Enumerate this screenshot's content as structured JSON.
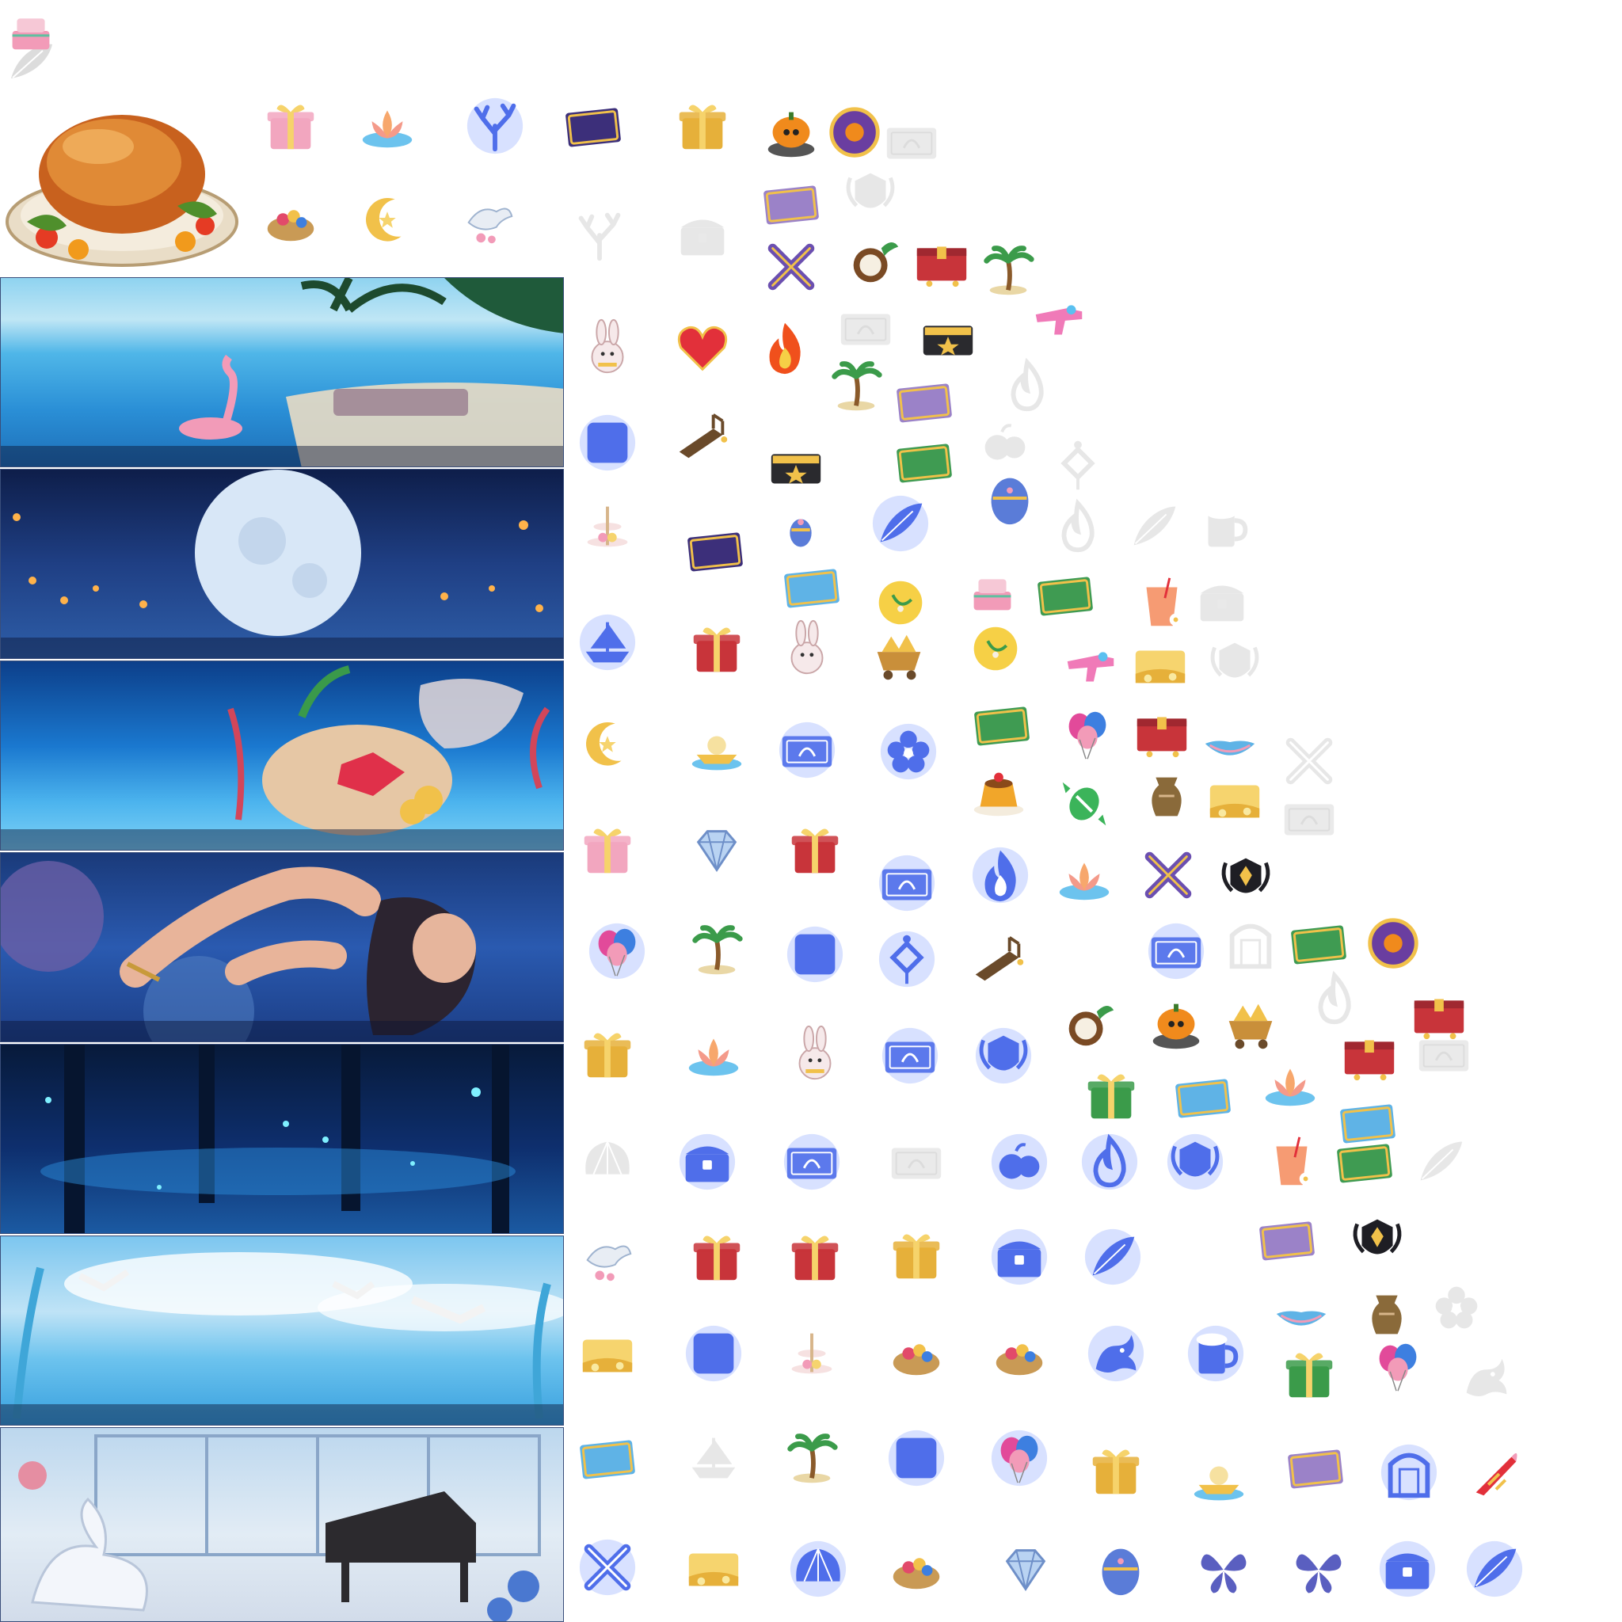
{
  "sheet": {
    "description_colors": {
      "background": "#ffffff",
      "blue_glow": "#5a7cff",
      "gold": "#f1c14a",
      "red": "#c8343a",
      "ghost_gray": "#cfd2d8"
    }
  },
  "banners": [
    {
      "scene": "tropical-beach",
      "icon": "palm-tree-icon"
    },
    {
      "scene": "full-moon-night",
      "icon": "moon-icon"
    },
    {
      "scene": "underwater-treasure",
      "icon": "gem-icon"
    },
    {
      "scene": "mermaid-character",
      "icon": "character-icon"
    },
    {
      "scene": "firefly-forest",
      "icon": "butterfly-icon"
    },
    {
      "scene": "seagull-sky",
      "icon": "bird-icon"
    },
    {
      "scene": "swan-piano-room",
      "icon": "piano-icon"
    }
  ],
  "icons": [
    {
      "kind": "gift"
    },
    {
      "kind": "lotus"
    },
    {
      "kind": "coral-blue"
    },
    {
      "kind": "card-purple"
    },
    {
      "kind": "gift-gold"
    },
    {
      "kind": "pumpkin"
    },
    {
      "kind": "coin-purple"
    },
    {
      "kind": "ticket-ghost"
    },
    {
      "kind": "basket"
    },
    {
      "kind": "moon"
    },
    {
      "kind": "dove"
    },
    {
      "kind": "coral-ghost"
    },
    {
      "kind": "chest-ghost"
    },
    {
      "kind": "card-flower"
    },
    {
      "kind": "crest-ghost"
    },
    {
      "kind": "swords"
    },
    {
      "kind": "coconut"
    },
    {
      "kind": "red-chest"
    },
    {
      "kind": "palm"
    },
    {
      "kind": "bunny"
    },
    {
      "kind": "heart"
    },
    {
      "kind": "flame"
    },
    {
      "kind": "ticket-ghost"
    },
    {
      "kind": "gold-ticket"
    },
    {
      "kind": "water-gun"
    },
    {
      "kind": "palm"
    },
    {
      "kind": "card-flower"
    },
    {
      "kind": "fire-ghost"
    },
    {
      "kind": "card-blue"
    },
    {
      "kind": "bridge"
    },
    {
      "kind": "gold-ticket"
    },
    {
      "kind": "card-green"
    },
    {
      "kind": "fruit-ghost"
    },
    {
      "kind": "knot-ghost"
    },
    {
      "kind": "egg-small"
    },
    {
      "kind": "egg"
    },
    {
      "kind": "cake-stand"
    },
    {
      "kind": "card-purple"
    },
    {
      "kind": "feather-blue"
    },
    {
      "kind": "fire-ghost"
    },
    {
      "kind": "feather-ghost"
    },
    {
      "kind": "beer-ghost"
    },
    {
      "kind": "card-ship"
    },
    {
      "kind": "gold-orb"
    },
    {
      "kind": "cake"
    },
    {
      "kind": "card-green"
    },
    {
      "kind": "drink"
    },
    {
      "kind": "chest-ghost"
    },
    {
      "kind": "ship-blue"
    },
    {
      "kind": "gift-red"
    },
    {
      "kind": "bunny-big"
    },
    {
      "kind": "cart-gold"
    },
    {
      "kind": "gold-orb"
    },
    {
      "kind": "water-gun"
    },
    {
      "kind": "gold-card"
    },
    {
      "kind": "crest-ghost"
    },
    {
      "kind": "card-green"
    },
    {
      "kind": "balloons"
    },
    {
      "kind": "red-chest"
    },
    {
      "kind": "boat"
    },
    {
      "kind": "moon"
    },
    {
      "kind": "boat-gold"
    },
    {
      "kind": "ticket-blue"
    },
    {
      "kind": "flower-blue"
    },
    {
      "kind": "pudding"
    },
    {
      "kind": "candy"
    },
    {
      "kind": "vase"
    },
    {
      "kind": "gold-card"
    },
    {
      "kind": "swords-ghost"
    },
    {
      "kind": "ticket-ghost"
    },
    {
      "kind": "gift"
    },
    {
      "kind": "diamond"
    },
    {
      "kind": "gift-red"
    },
    {
      "kind": "ticket-blue"
    },
    {
      "kind": "flame-blue"
    },
    {
      "kind": "lotus"
    },
    {
      "kind": "swords"
    },
    {
      "kind": "crest-dark"
    },
    {
      "kind": "balloons-blue"
    },
    {
      "kind": "palm"
    },
    {
      "kind": "card-blue"
    },
    {
      "kind": "knot-blue"
    },
    {
      "kind": "bridge"
    },
    {
      "kind": "ticket-blue"
    },
    {
      "kind": "gate-ghost"
    },
    {
      "kind": "card-green"
    },
    {
      "kind": "coin-purple"
    },
    {
      "kind": "fire-ghost"
    },
    {
      "kind": "red-chest"
    },
    {
      "kind": "gift-gold"
    },
    {
      "kind": "lotus"
    },
    {
      "kind": "bunny"
    },
    {
      "kind": "ticket-blue"
    },
    {
      "kind": "crest-blue"
    },
    {
      "kind": "coconut"
    },
    {
      "kind": "pumpkin"
    },
    {
      "kind": "cart-gold"
    },
    {
      "kind": "red-chest"
    },
    {
      "kind": "ticket-ghost"
    },
    {
      "kind": "gift-green"
    },
    {
      "kind": "card-ship"
    },
    {
      "kind": "lotus"
    },
    {
      "kind": "card-ship"
    },
    {
      "kind": "shell-ghost"
    },
    {
      "kind": "chest-blue"
    },
    {
      "kind": "ticket-blue"
    },
    {
      "kind": "ticket-ghost"
    },
    {
      "kind": "fruit-blue"
    },
    {
      "kind": "fire-blue"
    },
    {
      "kind": "crest-blue"
    },
    {
      "kind": "drink"
    },
    {
      "kind": "card-green"
    },
    {
      "kind": "feather-ghost"
    },
    {
      "kind": "dove"
    },
    {
      "kind": "gift-red"
    },
    {
      "kind": "gift-red"
    },
    {
      "kind": "gift-gold"
    },
    {
      "kind": "chest-blue"
    },
    {
      "kind": "feather-blue"
    },
    {
      "kind": "card-flower"
    },
    {
      "kind": "crest-dark"
    },
    {
      "kind": "boat"
    },
    {
      "kind": "vase"
    },
    {
      "kind": "flower-ghost"
    },
    {
      "kind": "gold-card"
    },
    {
      "kind": "card-blue"
    },
    {
      "kind": "cake-stand"
    },
    {
      "kind": "basket"
    },
    {
      "kind": "basket"
    },
    {
      "kind": "dragon-blue"
    },
    {
      "kind": "beer-blue"
    },
    {
      "kind": "gift-green"
    },
    {
      "kind": "balloons"
    },
    {
      "kind": "dragon-ghost"
    },
    {
      "kind": "card-ship"
    },
    {
      "kind": "ship-ghost"
    },
    {
      "kind": "palm"
    },
    {
      "kind": "card-blue"
    },
    {
      "kind": "balloons-blue"
    },
    {
      "kind": "gift-gold"
    },
    {
      "kind": "boat-gold"
    },
    {
      "kind": "card-flower"
    },
    {
      "kind": "gate-blue"
    },
    {
      "kind": "party-horn"
    },
    {
      "kind": "swords-blue"
    },
    {
      "kind": "gold-card"
    },
    {
      "kind": "shell-blue"
    },
    {
      "kind": "basket"
    },
    {
      "kind": "diamond"
    },
    {
      "kind": "egg"
    },
    {
      "kind": "butterfly"
    },
    {
      "kind": "butterfly"
    },
    {
      "kind": "chest-blue"
    },
    {
      "kind": "feather-blue"
    },
    {
      "kind": "cake"
    }
  ]
}
